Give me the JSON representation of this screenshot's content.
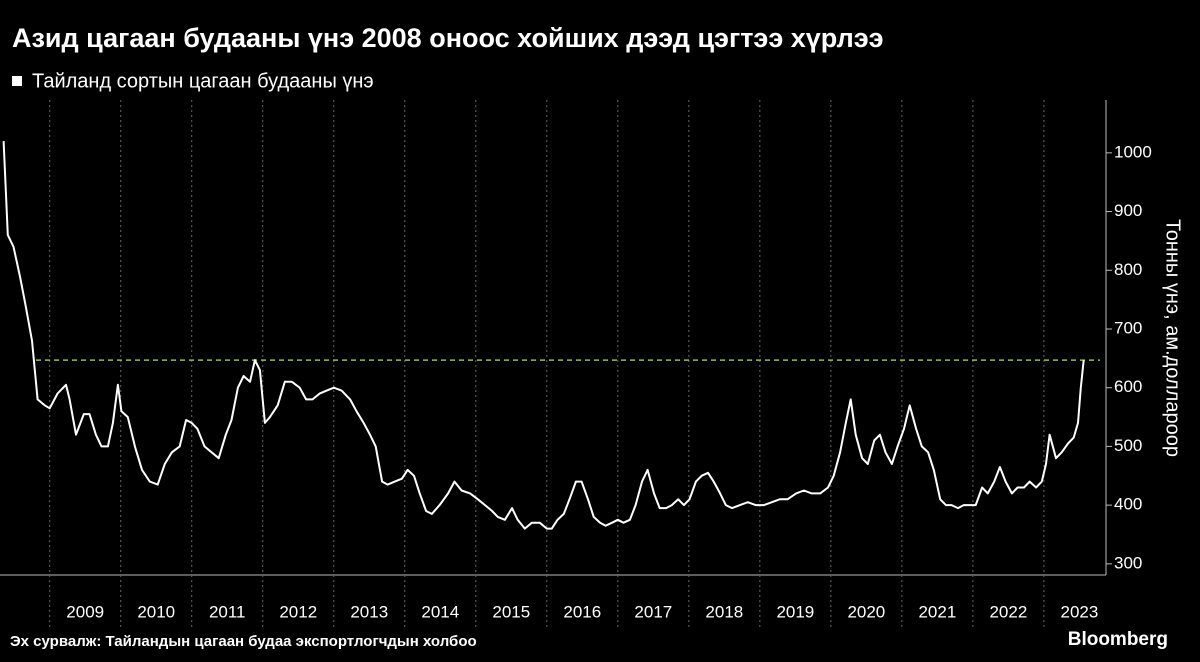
{
  "chart_data": {
    "type": "line",
    "title": "Азид цагаан будааны үнэ 2008 оноос хойших дээд цэгтээ хүрлээ",
    "y_axis_label": "Тонны үнэ, ам.доллароор",
    "source": "Эх сурвалж: Тайландын цагаан будаа экспортлогчдын холбоо",
    "brand": "Bloomberg",
    "legend": true,
    "grid": true,
    "reference_line": {
      "value": 647,
      "color": "#8bc34a"
    },
    "xlim": [
      2008.3,
      2023.79
    ],
    "xticks": [
      2009,
      2010,
      2011,
      2012,
      2013,
      2014,
      2015,
      2016,
      2017,
      2018,
      2019,
      2020,
      2021,
      2022,
      2023
    ],
    "ylim": [
      281,
      1090
    ],
    "yticks": [
      300,
      400,
      500,
      600,
      700,
      800,
      900,
      1000
    ],
    "x": [
      2008.35,
      2008.41,
      2008.49,
      2008.58,
      2008.66,
      2008.75,
      2008.83,
      2008.93,
      2009.0,
      2009.11,
      2009.23,
      2009.28,
      2009.37,
      2009.48,
      2009.56,
      2009.65,
      2009.73,
      2009.82,
      2009.89,
      2009.96,
      2010.01,
      2010.1,
      2010.2,
      2010.3,
      2010.41,
      2010.52,
      2010.62,
      2010.72,
      2010.83,
      2010.92,
      2011.0,
      2011.08,
      2011.18,
      2011.28,
      2011.38,
      2011.48,
      2011.56,
      2011.65,
      2011.73,
      2011.82,
      2011.89,
      2011.96,
      2012.03,
      2012.1,
      2012.21,
      2012.31,
      2012.41,
      2012.52,
      2012.61,
      2012.7,
      2012.8,
      2012.9,
      2013.0,
      2013.11,
      2013.23,
      2013.32,
      2013.42,
      2013.51,
      2013.59,
      2013.68,
      2013.76,
      2013.86,
      2013.96,
      2014.04,
      2014.13,
      2014.21,
      2014.3,
      2014.38,
      2014.49,
      2014.61,
      2014.7,
      2014.8,
      2014.92,
      2015.03,
      2015.13,
      2015.23,
      2015.31,
      2015.41,
      2015.51,
      2015.59,
      2015.69,
      2015.79,
      2015.9,
      2016.0,
      2016.07,
      2016.15,
      2016.24,
      2016.32,
      2016.41,
      2016.49,
      2016.58,
      2016.66,
      2016.75,
      2016.83,
      2016.92,
      2017.0,
      2017.08,
      2017.17,
      2017.25,
      2017.34,
      2017.42,
      2017.51,
      2017.59,
      2017.68,
      2017.76,
      2017.85,
      2017.93,
      2018.01,
      2018.1,
      2018.18,
      2018.27,
      2018.35,
      2018.44,
      2018.52,
      2018.61,
      2018.72,
      2018.83,
      2018.94,
      2019.06,
      2019.17,
      2019.28,
      2019.39,
      2019.51,
      2019.62,
      2019.73,
      2019.85,
      2019.96,
      2020.04,
      2020.13,
      2020.21,
      2020.28,
      2020.35,
      2020.44,
      2020.52,
      2020.61,
      2020.69,
      2020.77,
      2020.86,
      2020.94,
      2021.03,
      2021.11,
      2021.2,
      2021.28,
      2021.37,
      2021.45,
      2021.54,
      2021.62,
      2021.7,
      2021.79,
      2021.87,
      2021.96,
      2022.04,
      2022.13,
      2022.21,
      2022.3,
      2022.38,
      2022.46,
      2022.55,
      2022.63,
      2022.72,
      2022.8,
      2022.89,
      2022.97,
      2023.03,
      2023.08,
      2023.17,
      2023.25,
      2023.34,
      2023.42,
      2023.48,
      2023.52,
      2023.56
    ],
    "series": [
      {
        "name": "Тайланд сортын цагаан будааны үнэ",
        "color": "#ffffff",
        "values": [
          1020,
          860,
          840,
          790,
          740,
          680,
          580,
          570,
          565,
          590,
          605,
          580,
          520,
          555,
          555,
          520,
          500,
          500,
          540,
          605,
          560,
          550,
          500,
          460,
          440,
          435,
          470,
          490,
          500,
          545,
          540,
          530,
          500,
          490,
          480,
          520,
          545,
          600,
          620,
          610,
          647,
          630,
          540,
          550,
          570,
          610,
          610,
          600,
          580,
          580,
          590,
          595,
          600,
          595,
          580,
          560,
          540,
          520,
          500,
          440,
          435,
          440,
          445,
          460,
          450,
          420,
          390,
          385,
          400,
          420,
          440,
          425,
          420,
          410,
          400,
          390,
          380,
          375,
          395,
          375,
          360,
          370,
          370,
          360,
          360,
          375,
          385,
          410,
          440,
          440,
          410,
          380,
          370,
          365,
          370,
          375,
          370,
          375,
          400,
          440,
          460,
          420,
          395,
          395,
          400,
          410,
          400,
          410,
          440,
          450,
          455,
          440,
          420,
          400,
          395,
          400,
          405,
          400,
          400,
          405,
          410,
          410,
          420,
          425,
          420,
          420,
          430,
          450,
          490,
          540,
          580,
          520,
          480,
          470,
          510,
          520,
          490,
          470,
          500,
          530,
          570,
          530,
          500,
          490,
          460,
          410,
          400,
          400,
          395,
          400,
          400,
          400,
          430,
          420,
          440,
          465,
          440,
          420,
          430,
          430,
          440,
          430,
          440,
          470,
          520,
          480,
          490,
          505,
          515,
          540,
          600,
          647
        ]
      }
    ]
  }
}
